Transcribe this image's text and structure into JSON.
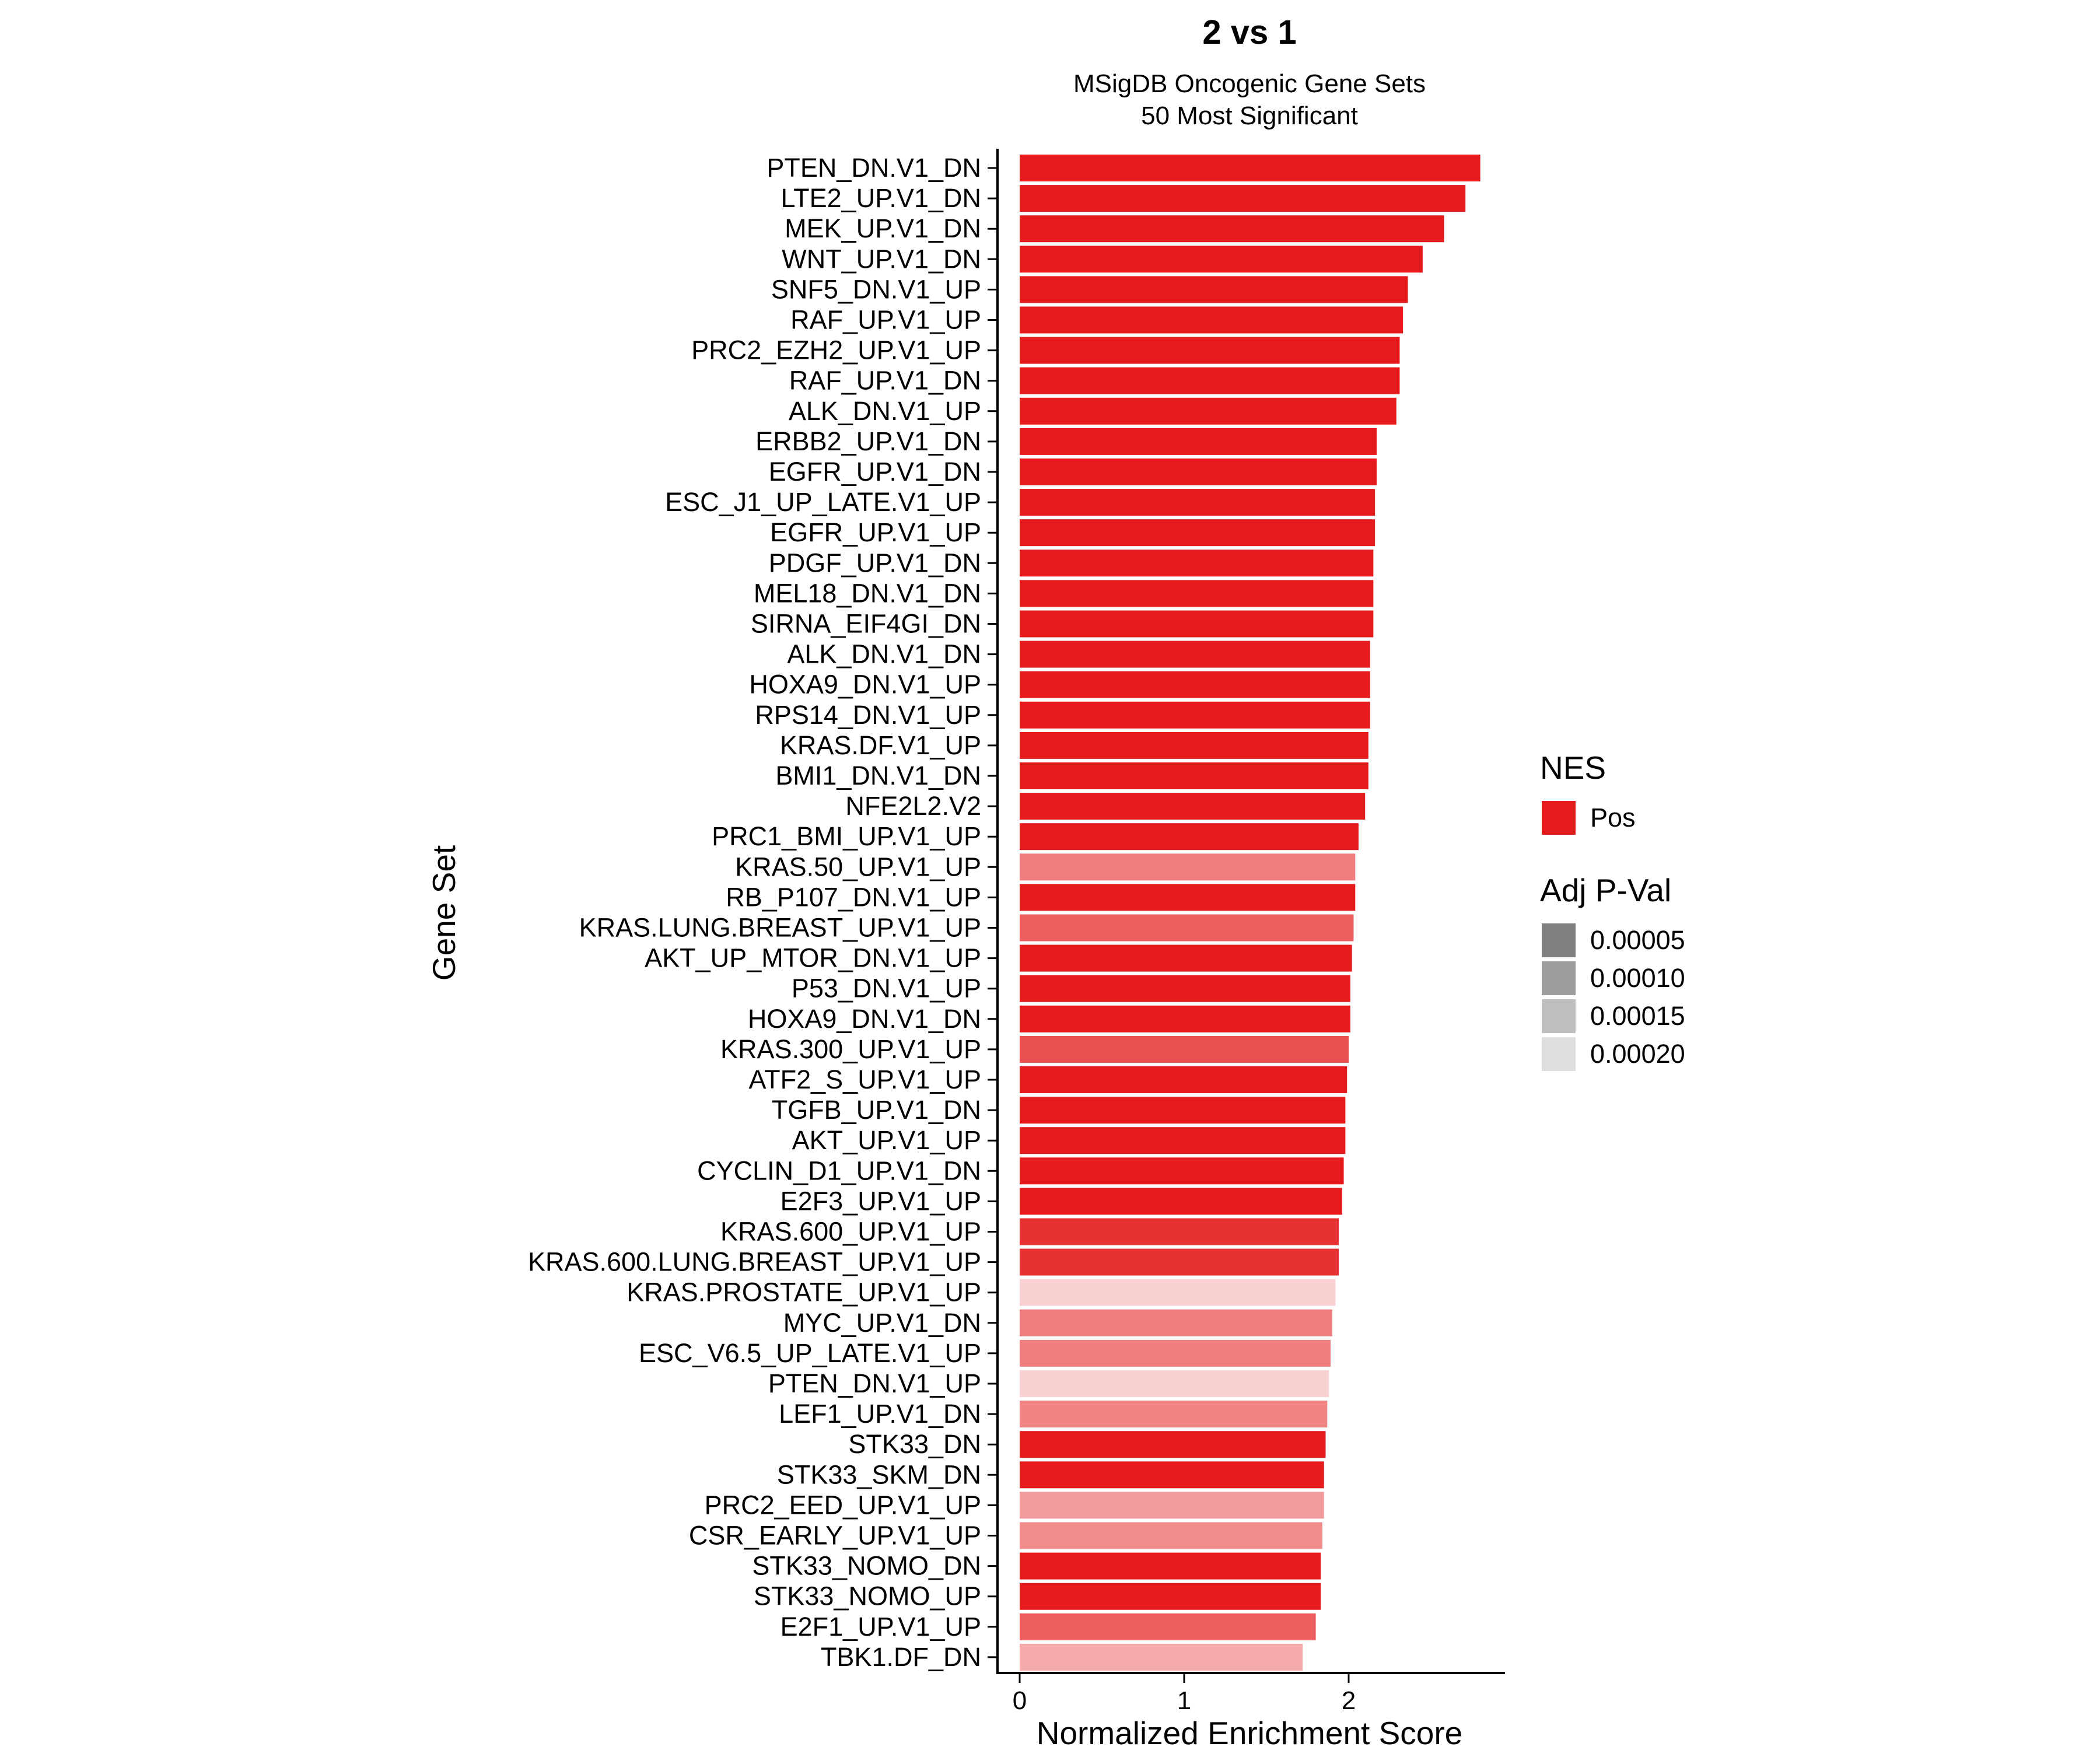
{
  "chart_data": {
    "type": "bar",
    "orientation": "horizontal",
    "title": "2 vs 1",
    "subtitle": [
      "MSigDB Oncogenic Gene Sets",
      "50 Most Significant"
    ],
    "xlabel": "Normalized Enrichment Score",
    "ylabel": "Gene Set",
    "xlim": [
      0,
      2.93
    ],
    "xticks": [
      0,
      1,
      2
    ],
    "grid": false,
    "bar_color": "#E41A1C",
    "categories": [
      "PTEN_DN.V1_DN",
      "LTE2_UP.V1_DN",
      "MEK_UP.V1_DN",
      "WNT_UP.V1_DN",
      "SNF5_DN.V1_UP",
      "RAF_UP.V1_UP",
      "PRC2_EZH2_UP.V1_UP",
      "RAF_UP.V1_DN",
      "ALK_DN.V1_UP",
      "ERBB2_UP.V1_DN",
      "EGFR_UP.V1_DN",
      "ESC_J1_UP_LATE.V1_UP",
      "EGFR_UP.V1_UP",
      "PDGF_UP.V1_DN",
      "MEL18_DN.V1_DN",
      "SIRNA_EIF4GI_DN",
      "ALK_DN.V1_DN",
      "HOXA9_DN.V1_UP",
      "RPS14_DN.V1_UP",
      "KRAS.DF.V1_UP",
      "BMI1_DN.V1_DN",
      "NFE2L2.V2",
      "PRC1_BMI_UP.V1_UP",
      "KRAS.50_UP.V1_UP",
      "RB_P107_DN.V1_UP",
      "KRAS.LUNG.BREAST_UP.V1_UP",
      "AKT_UP_MTOR_DN.V1_UP",
      "P53_DN.V1_UP",
      "HOXA9_DN.V1_DN",
      "KRAS.300_UP.V1_UP",
      "ATF2_S_UP.V1_UP",
      "TGFB_UP.V1_DN",
      "AKT_UP.V1_UP",
      "CYCLIN_D1_UP.V1_DN",
      "E2F3_UP.V1_UP",
      "KRAS.600_UP.V1_UP",
      "KRAS.600.LUNG.BREAST_UP.V1_UP",
      "KRAS.PROSTATE_UP.V1_UP",
      "MYC_UP.V1_DN",
      "ESC_V6.5_UP_LATE.V1_UP",
      "PTEN_DN.V1_UP",
      "LEF1_UP.V1_DN",
      "STK33_DN",
      "STK33_SKM_DN",
      "PRC2_EED_UP.V1_UP",
      "CSR_EARLY_UP.V1_UP",
      "STK33_NOMO_DN",
      "STK33_NOMO_UP",
      "E2F1_UP.V1_UP",
      "TBK1.DF_DN"
    ],
    "values": [
      2.8,
      2.71,
      2.58,
      2.45,
      2.36,
      2.33,
      2.31,
      2.31,
      2.29,
      2.17,
      2.17,
      2.16,
      2.16,
      2.15,
      2.15,
      2.15,
      2.13,
      2.13,
      2.13,
      2.12,
      2.12,
      2.1,
      2.06,
      2.04,
      2.04,
      2.03,
      2.02,
      2.01,
      2.01,
      2.0,
      1.99,
      1.98,
      1.98,
      1.97,
      1.96,
      1.94,
      1.94,
      1.92,
      1.9,
      1.89,
      1.88,
      1.87,
      1.86,
      1.85,
      1.85,
      1.84,
      1.83,
      1.83,
      1.8,
      1.72
    ],
    "adj_pval": [
      1e-05,
      1e-05,
      1e-05,
      1e-05,
      1e-05,
      1e-05,
      1e-05,
      1e-05,
      1e-05,
      1e-05,
      1e-05,
      1e-05,
      1e-05,
      1e-05,
      1e-05,
      1e-05,
      1e-05,
      1e-05,
      1e-05,
      1e-05,
      1e-05,
      1e-05,
      1e-05,
      0.00014,
      1e-05,
      0.0001,
      1e-05,
      1e-05,
      1e-05,
      8e-05,
      1e-05,
      1e-05,
      1e-05,
      1e-05,
      1e-05,
      4e-05,
      4e-05,
      0.00025,
      0.00014,
      0.00014,
      0.00025,
      0.00015,
      1e-05,
      1e-05,
      0.00018,
      0.00016,
      1e-05,
      1e-05,
      0.0001,
      0.0002
    ],
    "legend": {
      "position": "right",
      "fill_title": "NES",
      "fill_items": [
        {
          "label": "Pos",
          "color": "#E41A1C"
        }
      ],
      "alpha_title": "Adj P-Val",
      "alpha_items": [
        {
          "label": "0.00005",
          "color": "#7F7F7F"
        },
        {
          "label": "0.00010",
          "color": "#9D9D9D"
        },
        {
          "label": "0.00015",
          "color": "#BEBEBE"
        },
        {
          "label": "0.00020",
          "color": "#DEDEDE"
        }
      ]
    }
  }
}
